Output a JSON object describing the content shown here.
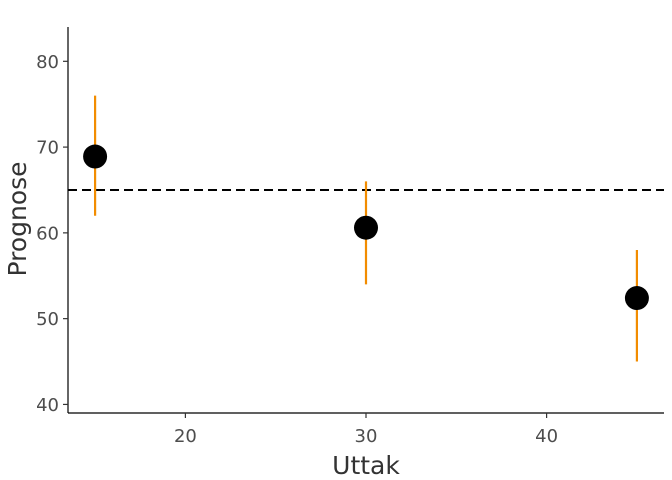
{
  "chart_data": {
    "type": "scatter",
    "xlabel": "Uttak",
    "ylabel": "Prognose",
    "xlim": [
      13.5,
      46.5
    ],
    "ylim": [
      39,
      84
    ],
    "xticks": [
      20,
      30,
      40
    ],
    "yticks": [
      40,
      50,
      60,
      70,
      80
    ],
    "reference_line": {
      "y": 65,
      "style": "dashed",
      "color": "#000000"
    },
    "grid": false,
    "points": [
      {
        "x": 15,
        "y": 68.9,
        "lower": 62,
        "upper": 76
      },
      {
        "x": 30,
        "y": 60.6,
        "lower": 54,
        "upper": 66
      },
      {
        "x": 45,
        "y": 52.4,
        "lower": 45,
        "upper": 58
      }
    ],
    "colors": {
      "point": "#000000",
      "errorbar": "#f28c00",
      "axis": "#000000"
    }
  }
}
